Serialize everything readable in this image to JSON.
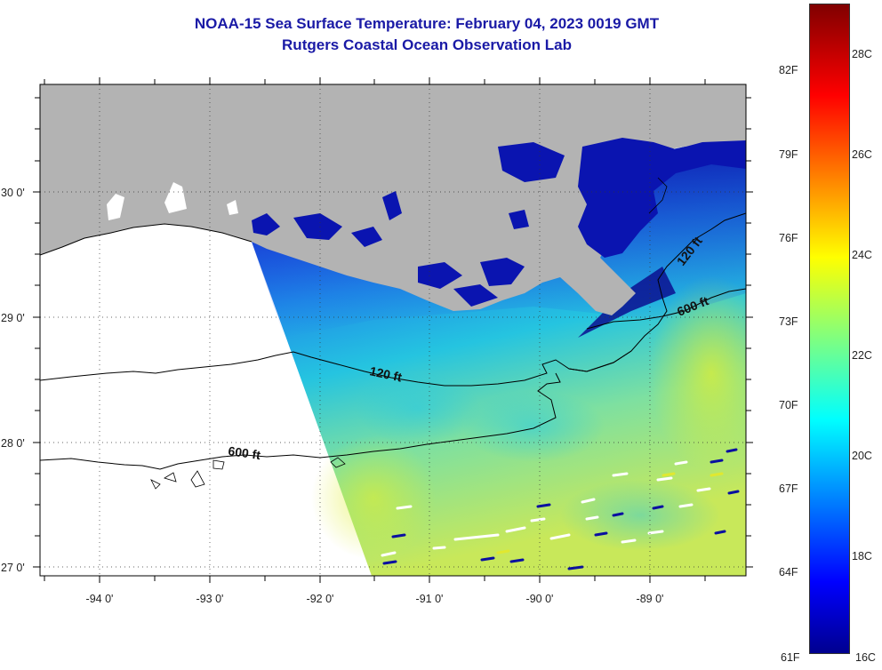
{
  "header": {
    "title_line1": "NOAA-15 Sea Surface Temperature:  February 04, 2023 0019 GMT",
    "title_line2": "Rutgers Coastal Ocean Observation Lab"
  },
  "map": {
    "lat_labels": [
      "30 0'",
      "29 0'",
      "28 0'",
      "27 0'"
    ],
    "lon_labels": [
      "-94 0'",
      "-93 0'",
      "-92 0'",
      "-91 0'",
      "-90 0'",
      "-89 0'"
    ],
    "contours": {
      "shelf_120": "120 ft",
      "shelf_600": "600 ft",
      "east_120": "120 ft",
      "east_600": "600 ft"
    },
    "colors": {
      "land": "#b3b3b3",
      "no_data": "#ffffff",
      "cold": "#0a1fb8",
      "mid": "#19c9e6",
      "warm": "#c8e640"
    }
  },
  "colorbar": {
    "fahrenheit_labels": [
      "82F",
      "79F",
      "76F",
      "73F",
      "70F",
      "67F",
      "64F",
      "61F"
    ],
    "celsius_labels": [
      "28C",
      "26C",
      "24C",
      "22C",
      "20C",
      "18C",
      "16C"
    ],
    "range_c": [
      16,
      29.5
    ]
  }
}
